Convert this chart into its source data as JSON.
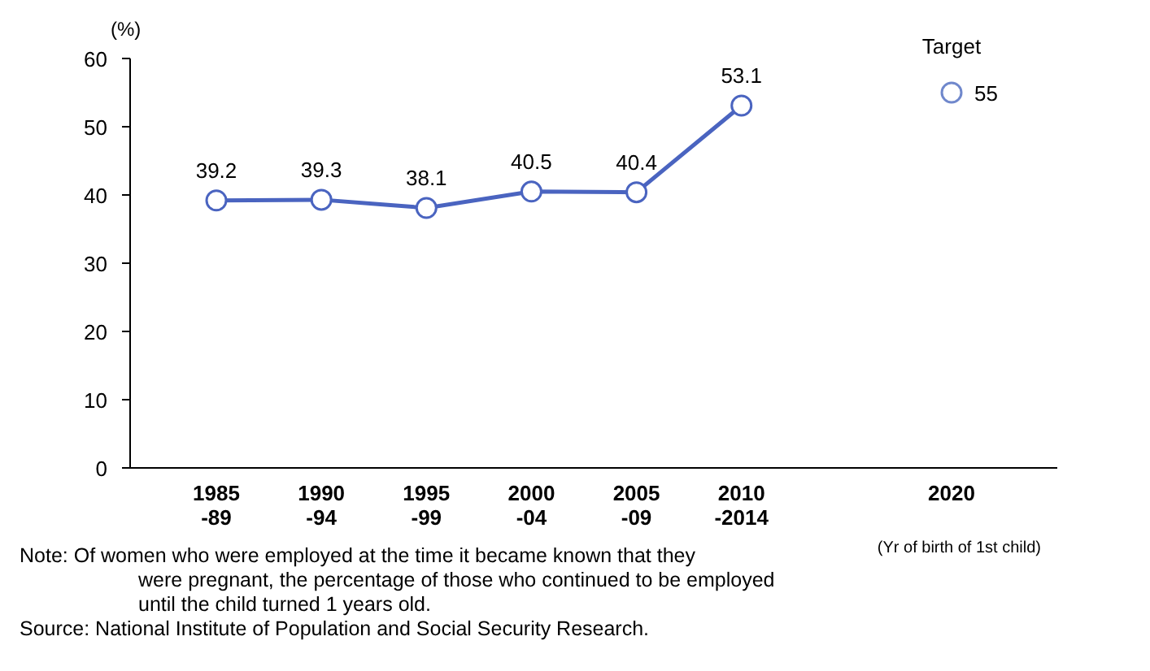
{
  "chart_data": {
    "type": "line",
    "ylabel": "(%)",
    "xlabel": "(Yr of birth of 1st child)",
    "categories": [
      "1985\n-89",
      "1990\n-94",
      "1995\n-99",
      "2000\n-04",
      "2005\n-09",
      "2010\n-2014",
      null,
      "2020"
    ],
    "series": [
      {
        "color": "#4a64c0",
        "values": [
          39.2,
          39.3,
          38.1,
          40.5,
          40.4,
          53.1,
          null,
          null
        ]
      },
      {
        "type": "scatter",
        "color": "#7088cc",
        "values": [
          null,
          null,
          null,
          null,
          null,
          null,
          null,
          55
        ]
      }
    ],
    "ylim": [
      0,
      60
    ],
    "yticks": [
      0,
      10,
      20,
      30,
      40,
      50,
      60
    ],
    "grid": false,
    "marker": "circle",
    "line_style": "solid",
    "data_labels": true,
    "annotations": [
      {
        "text": "Target",
        "x": "2020",
        "y": 55
      },
      "Note:   Of women who were employed at the time  it became known that they\nwere pregnant, the percentage of those who continued to be employed\nuntil the child turned 1 years old.",
      "Source: National Institute of Population and Social  Security Research."
    ]
  }
}
